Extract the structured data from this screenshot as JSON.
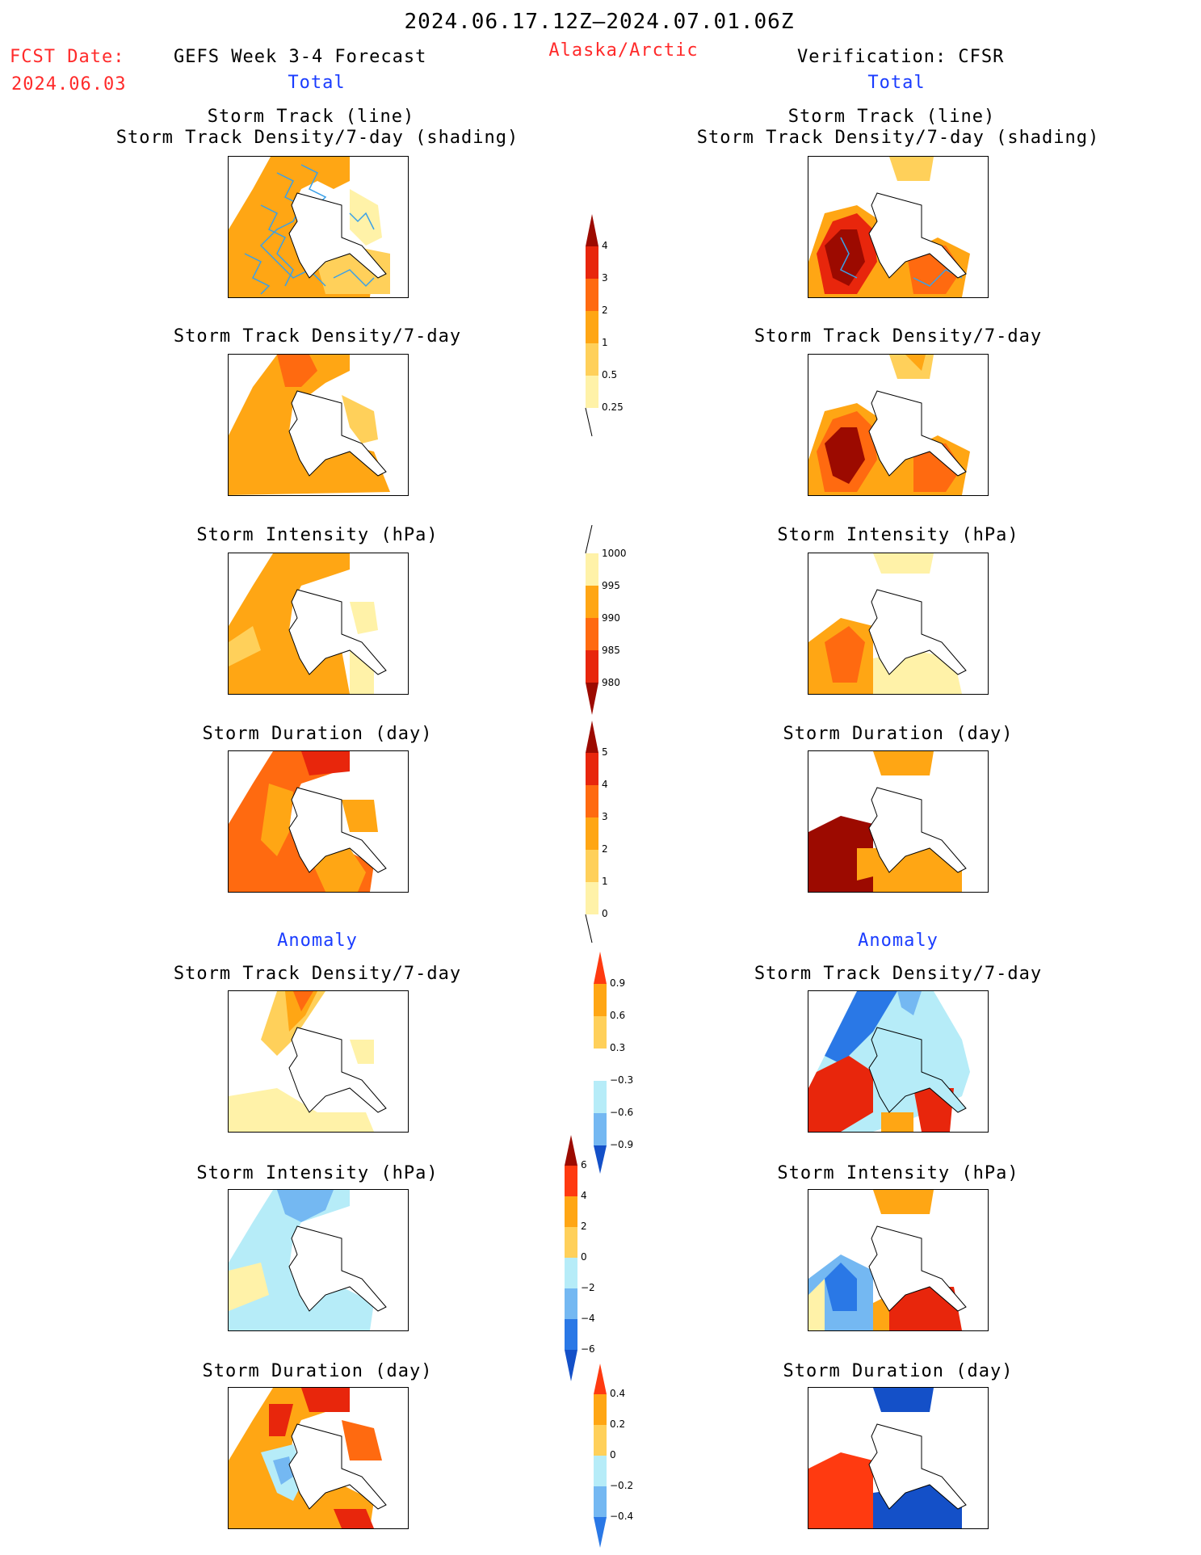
{
  "header": {
    "period": "2024.06.17.12Z–2024.07.01.06Z",
    "fcst_label": "FCST Date:",
    "fcst_date": "2024.06.03",
    "model": "GEFS Week 3-4 Forecast",
    "region": "Alaska/Arctic",
    "verification": "Verification: CFSR",
    "left_subtitle": "Total",
    "right_subtitle": "Total"
  },
  "sections": {
    "anomaly_left": "Anomaly",
    "anomaly_right": "Anomaly"
  },
  "panels": {
    "track_line_title1": "Storm Track (line)",
    "track_line_title2": "Storm Track Density/7-day (shading)",
    "density_title": "Storm Track Density/7-day",
    "intensity_title": "Storm Intensity (hPa)",
    "duration_title": "Storm Duration (day)"
  },
  "colorbars": {
    "density": [
      "4",
      "3",
      "2",
      "1",
      "0.5",
      "0.25"
    ],
    "intensity": [
      "1000",
      "995",
      "990",
      "985",
      "980"
    ],
    "duration": [
      "5",
      "4",
      "3",
      "2",
      "1",
      "0"
    ],
    "density_anom": [
      "0.9",
      "0.6",
      "0.3",
      "−0.3",
      "−0.6",
      "−0.9"
    ],
    "intensity_anom": [
      "6",
      "4",
      "2",
      "0",
      "−2",
      "−4",
      "−6"
    ],
    "duration_anom": [
      "0.4",
      "0.2",
      "0",
      "−0.2",
      "−0.4"
    ]
  },
  "colors": {
    "lightyellow": "#fff2a8",
    "yellow": "#ffd05a",
    "orange": "#ffa614",
    "darkorange": "#ff6a10",
    "red": "#e8260c",
    "darkred": "#9c0a00",
    "lightblue": "#b6ecf8",
    "midblue": "#74b8f2",
    "blue": "#2a78e6",
    "darkblue": "#1450c8",
    "track": "#3aa0e8"
  }
}
